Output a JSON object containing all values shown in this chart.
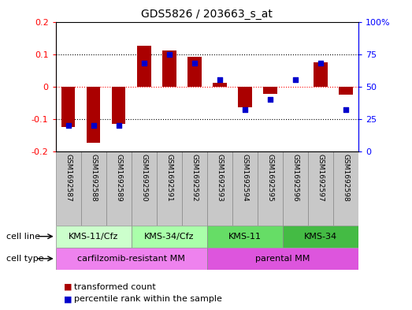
{
  "title": "GDS5826 / 203663_s_at",
  "samples": [
    "GSM1692587",
    "GSM1692588",
    "GSM1692589",
    "GSM1692590",
    "GSM1692591",
    "GSM1692592",
    "GSM1692593",
    "GSM1692594",
    "GSM1692595",
    "GSM1692596",
    "GSM1692597",
    "GSM1692598"
  ],
  "transformed_count": [
    -0.125,
    -0.175,
    -0.115,
    0.125,
    0.11,
    0.092,
    0.012,
    -0.065,
    -0.022,
    0.0,
    0.075,
    -0.025
  ],
  "percentile_rank": [
    20,
    20,
    20,
    68,
    75,
    68,
    55,
    32,
    40,
    55,
    68,
    32
  ],
  "cell_line_groups": [
    {
      "label": "KMS-11/Cfz",
      "start": 0,
      "end": 3,
      "facecolor": "#CCFFCC"
    },
    {
      "label": "KMS-34/Cfz",
      "start": 3,
      "end": 6,
      "facecolor": "#99EE99"
    },
    {
      "label": "KMS-11",
      "start": 6,
      "end": 9,
      "facecolor": "#66DD66"
    },
    {
      "label": "KMS-34",
      "start": 9,
      "end": 12,
      "facecolor": "#44CC44"
    }
  ],
  "cell_type_groups": [
    {
      "label": "carfilzomib-resistant MM",
      "start": 0,
      "end": 6,
      "facecolor": "#EE82EE"
    },
    {
      "label": "parental MM",
      "start": 6,
      "end": 12,
      "facecolor": "#DD66DD"
    }
  ],
  "ylim_left": [
    -0.2,
    0.2
  ],
  "ylim_right": [
    0,
    100
  ],
  "yticks_left": [
    -0.2,
    -0.1,
    0.0,
    0.1,
    0.2
  ],
  "yticks_right": [
    0,
    25,
    50,
    75,
    100
  ],
  "bar_color": "#AA0000",
  "dot_color": "#0000CC",
  "sample_bg": "#C8C8C8",
  "legend_items": [
    "transformed count",
    "percentile rank within the sample"
  ]
}
